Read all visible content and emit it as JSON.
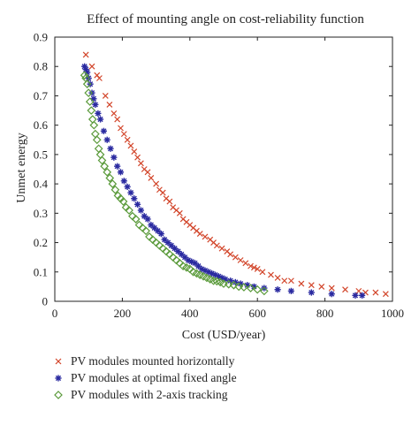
{
  "chart_data": {
    "type": "scatter",
    "title": "Effect of mounting angle on cost-reliability function",
    "xlabel": "Cost (USD/year)",
    "ylabel": "Unmet energy",
    "xlim": [
      0,
      1000
    ],
    "ylim": [
      0,
      0.9
    ],
    "xticks": [
      "0",
      "200",
      "400",
      "600",
      "800",
      "1000"
    ],
    "yticks": [
      "0",
      "0.1",
      "0.2",
      "0.3",
      "0.4",
      "0.5",
      "0.6",
      "0.7",
      "0.8",
      "0.9"
    ],
    "grid": false,
    "legend_position": "bottom",
    "series": [
      {
        "name": "PV modules mounted horizontally",
        "marker": "x",
        "color": "#d2452a",
        "x": [
          92,
          110,
          125,
          132,
          150,
          162,
          175,
          185,
          195,
          205,
          215,
          225,
          235,
          245,
          255,
          265,
          275,
          285,
          300,
          310,
          320,
          330,
          340,
          350,
          360,
          370,
          380,
          390,
          400,
          410,
          420,
          430,
          445,
          460,
          470,
          480,
          495,
          510,
          520,
          535,
          550,
          565,
          580,
          590,
          600,
          615,
          640,
          660,
          680,
          700,
          730,
          760,
          790,
          820,
          860,
          900,
          920,
          950,
          980
        ],
        "y": [
          0.84,
          0.8,
          0.77,
          0.76,
          0.7,
          0.67,
          0.64,
          0.62,
          0.59,
          0.57,
          0.55,
          0.53,
          0.51,
          0.49,
          0.47,
          0.45,
          0.44,
          0.42,
          0.4,
          0.38,
          0.37,
          0.35,
          0.34,
          0.32,
          0.31,
          0.3,
          0.28,
          0.27,
          0.26,
          0.25,
          0.24,
          0.23,
          0.22,
          0.21,
          0.2,
          0.19,
          0.18,
          0.17,
          0.16,
          0.15,
          0.14,
          0.13,
          0.12,
          0.115,
          0.11,
          0.1,
          0.09,
          0.08,
          0.07,
          0.07,
          0.06,
          0.055,
          0.05,
          0.045,
          0.04,
          0.035,
          0.03,
          0.03,
          0.025
        ]
      },
      {
        "name": "PV modules at optimal fixed angle",
        "marker": "asterisk",
        "color": "#2a2aa0",
        "x": [
          88,
          92,
          96,
          100,
          105,
          110,
          115,
          120,
          128,
          135,
          145,
          155,
          165,
          175,
          185,
          195,
          205,
          215,
          225,
          235,
          245,
          255,
          265,
          275,
          285,
          295,
          305,
          315,
          325,
          335,
          345,
          355,
          365,
          375,
          385,
          395,
          405,
          415,
          425,
          435,
          445,
          455,
          465,
          475,
          485,
          495,
          505,
          520,
          535,
          550,
          570,
          590,
          620,
          660,
          700,
          760,
          820,
          890,
          910
        ],
        "y": [
          0.8,
          0.79,
          0.78,
          0.76,
          0.74,
          0.71,
          0.69,
          0.67,
          0.64,
          0.62,
          0.58,
          0.55,
          0.52,
          0.49,
          0.46,
          0.44,
          0.41,
          0.39,
          0.37,
          0.35,
          0.33,
          0.31,
          0.29,
          0.28,
          0.26,
          0.25,
          0.24,
          0.23,
          0.21,
          0.2,
          0.19,
          0.18,
          0.17,
          0.16,
          0.15,
          0.14,
          0.135,
          0.13,
          0.12,
          0.11,
          0.105,
          0.1,
          0.095,
          0.09,
          0.085,
          0.08,
          0.075,
          0.07,
          0.065,
          0.06,
          0.055,
          0.05,
          0.045,
          0.04,
          0.035,
          0.03,
          0.025,
          0.02,
          0.02
        ]
      },
      {
        "name": "PV modules with 2-axis tracking",
        "marker": "diamond",
        "color": "#5a9a3a",
        "x": [
          88,
          92,
          96,
          100,
          104,
          108,
          112,
          116,
          120,
          125,
          130,
          135,
          140,
          147,
          155,
          163,
          171,
          179,
          187,
          195,
          203,
          211,
          220,
          230,
          240,
          250,
          260,
          270,
          280,
          290,
          300,
          310,
          320,
          330,
          340,
          350,
          360,
          370,
          380,
          390,
          400,
          410,
          420,
          430,
          440,
          450,
          460,
          470,
          480,
          490,
          500,
          515,
          530,
          545,
          560,
          580,
          600,
          620
        ],
        "y": [
          0.77,
          0.76,
          0.74,
          0.71,
          0.68,
          0.65,
          0.62,
          0.6,
          0.57,
          0.55,
          0.52,
          0.5,
          0.48,
          0.46,
          0.44,
          0.42,
          0.4,
          0.38,
          0.36,
          0.35,
          0.34,
          0.32,
          0.31,
          0.29,
          0.28,
          0.26,
          0.25,
          0.24,
          0.22,
          0.21,
          0.2,
          0.19,
          0.18,
          0.17,
          0.16,
          0.15,
          0.14,
          0.13,
          0.12,
          0.115,
          0.11,
          0.1,
          0.095,
          0.09,
          0.085,
          0.08,
          0.075,
          0.07,
          0.068,
          0.065,
          0.06,
          0.058,
          0.055,
          0.05,
          0.048,
          0.045,
          0.04,
          0.035
        ]
      }
    ]
  }
}
